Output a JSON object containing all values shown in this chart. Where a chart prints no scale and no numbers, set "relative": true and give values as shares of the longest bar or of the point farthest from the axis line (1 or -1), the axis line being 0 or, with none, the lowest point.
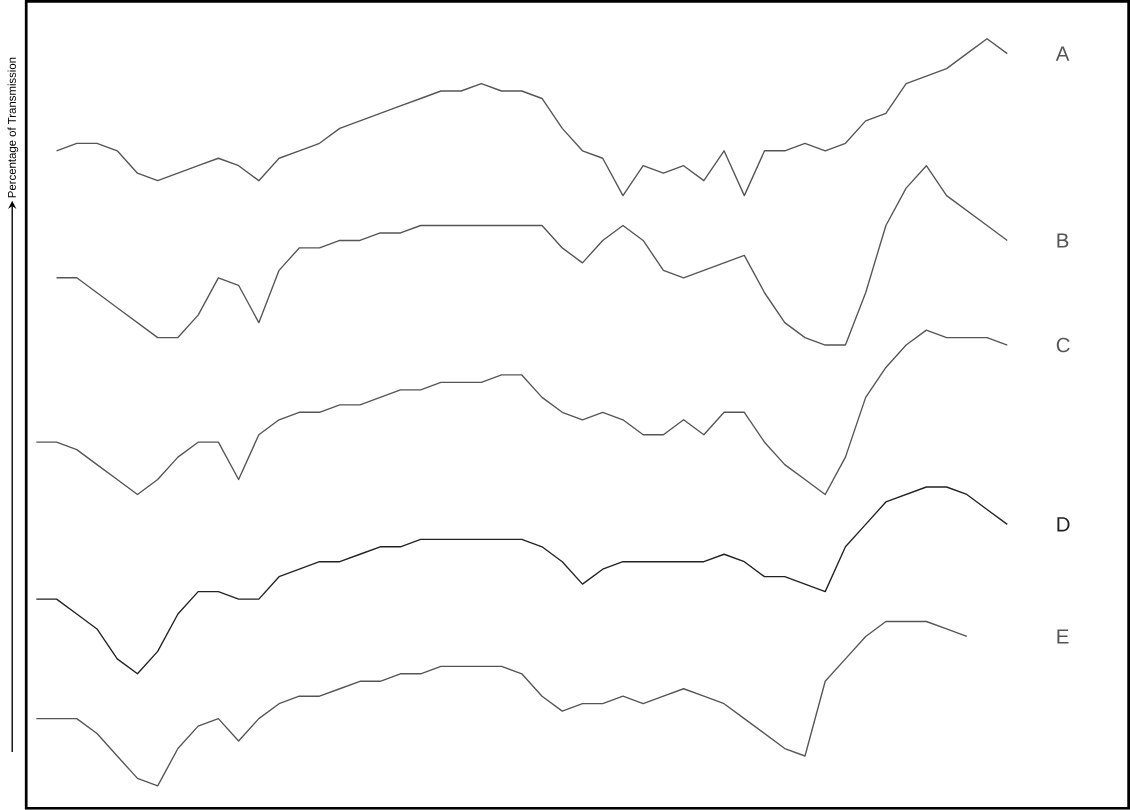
{
  "chart_data": {
    "type": "line",
    "ylabel": "Percentage of Transmission",
    "relative": true,
    "marker": "none",
    "line_style": "solid",
    "categories": [
      null,
      null,
      null,
      null,
      null,
      null,
      null,
      null,
      null,
      null,
      null,
      null,
      null,
      null,
      null,
      null,
      null,
      null,
      null,
      null,
      null,
      null,
      null,
      null,
      null,
      null,
      null,
      null,
      null,
      null,
      null,
      null,
      null,
      null,
      null,
      null,
      null,
      null,
      null,
      null,
      null,
      null,
      null,
      null,
      null,
      null,
      null,
      null,
      null
    ],
    "series": [
      {
        "name": "A",
        "color": "#555555",
        "values": [
          null,
          0.85,
          0.86,
          0.86,
          0.85,
          0.82,
          0.81,
          0.82,
          0.83,
          0.84,
          0.83,
          0.81,
          0.84,
          0.85,
          0.86,
          0.88,
          0.89,
          0.9,
          0.91,
          0.92,
          0.93,
          0.93,
          0.94,
          0.93,
          0.93,
          0.92,
          0.88,
          0.85,
          0.84,
          0.79,
          0.83,
          0.82,
          0.83,
          0.81,
          0.85,
          0.79,
          0.85,
          0.85,
          0.86,
          0.85,
          0.86,
          0.89,
          0.9,
          0.94,
          0.95,
          0.96,
          0.98,
          1,
          0.98
        ]
      },
      {
        "name": "B",
        "color": "#555555",
        "values": [
          null,
          0.68,
          0.68,
          0.66,
          0.64,
          0.62,
          0.6,
          0.6,
          0.63,
          0.68,
          0.67,
          0.62,
          0.69,
          0.72,
          0.72,
          0.73,
          0.73,
          0.74,
          0.74,
          0.75,
          0.75,
          0.75,
          0.75,
          0.75,
          0.75,
          0.75,
          0.72,
          0.7,
          0.73,
          0.75,
          0.73,
          0.69,
          0.68,
          0.69,
          0.7,
          0.71,
          0.66,
          0.62,
          0.6,
          0.59,
          0.59,
          0.66,
          0.75,
          0.8,
          0.83,
          0.79,
          0.77,
          0.75,
          0.73
        ]
      },
      {
        "name": "C",
        "color": "#555555",
        "values": [
          0.46,
          0.46,
          0.45,
          0.43,
          0.41,
          0.39,
          0.41,
          0.44,
          0.46,
          0.46,
          0.41,
          0.47,
          0.49,
          0.5,
          0.5,
          0.51,
          0.51,
          0.52,
          0.53,
          0.53,
          0.54,
          0.54,
          0.54,
          0.55,
          0.55,
          0.52,
          0.5,
          0.49,
          0.5,
          0.49,
          0.47,
          0.47,
          0.49,
          0.47,
          0.5,
          0.5,
          0.46,
          0.43,
          0.41,
          0.39,
          0.44,
          0.52,
          0.56,
          0.59,
          0.61,
          0.6,
          0.6,
          0.6,
          0.59
        ]
      },
      {
        "name": "D",
        "color": "#222222",
        "values": [
          0.25,
          0.25,
          0.23,
          0.21,
          0.17,
          0.15,
          0.18,
          0.23,
          0.26,
          0.26,
          0.25,
          0.25,
          0.28,
          0.29,
          0.3,
          0.3,
          0.31,
          0.32,
          0.32,
          0.33,
          0.33,
          0.33,
          0.33,
          0.33,
          0.33,
          0.32,
          0.3,
          0.27,
          0.29,
          0.3,
          0.3,
          0.3,
          0.3,
          0.3,
          0.31,
          0.3,
          0.28,
          0.28,
          0.27,
          0.26,
          0.32,
          0.35,
          0.38,
          0.39,
          0.4,
          0.4,
          0.39,
          0.37,
          0.35
        ]
      },
      {
        "name": "E",
        "color": "#555555",
        "values": [
          0.09,
          0.09,
          0.09,
          0.07,
          0.04,
          0.01,
          0,
          0.05,
          0.08,
          0.09,
          0.06,
          0.09,
          0.11,
          0.12,
          0.12,
          0.13,
          0.14,
          0.14,
          0.15,
          0.15,
          0.16,
          0.16,
          0.16,
          0.16,
          0.15,
          0.12,
          0.1,
          0.11,
          0.11,
          0.12,
          0.11,
          0.12,
          0.13,
          0.12,
          0.11,
          0.09,
          0.07,
          0.05,
          0.04,
          0.14,
          0.17,
          0.2,
          0.22,
          0.22,
          0.22,
          0.21,
          0.2,
          null,
          null
        ]
      }
    ]
  }
}
